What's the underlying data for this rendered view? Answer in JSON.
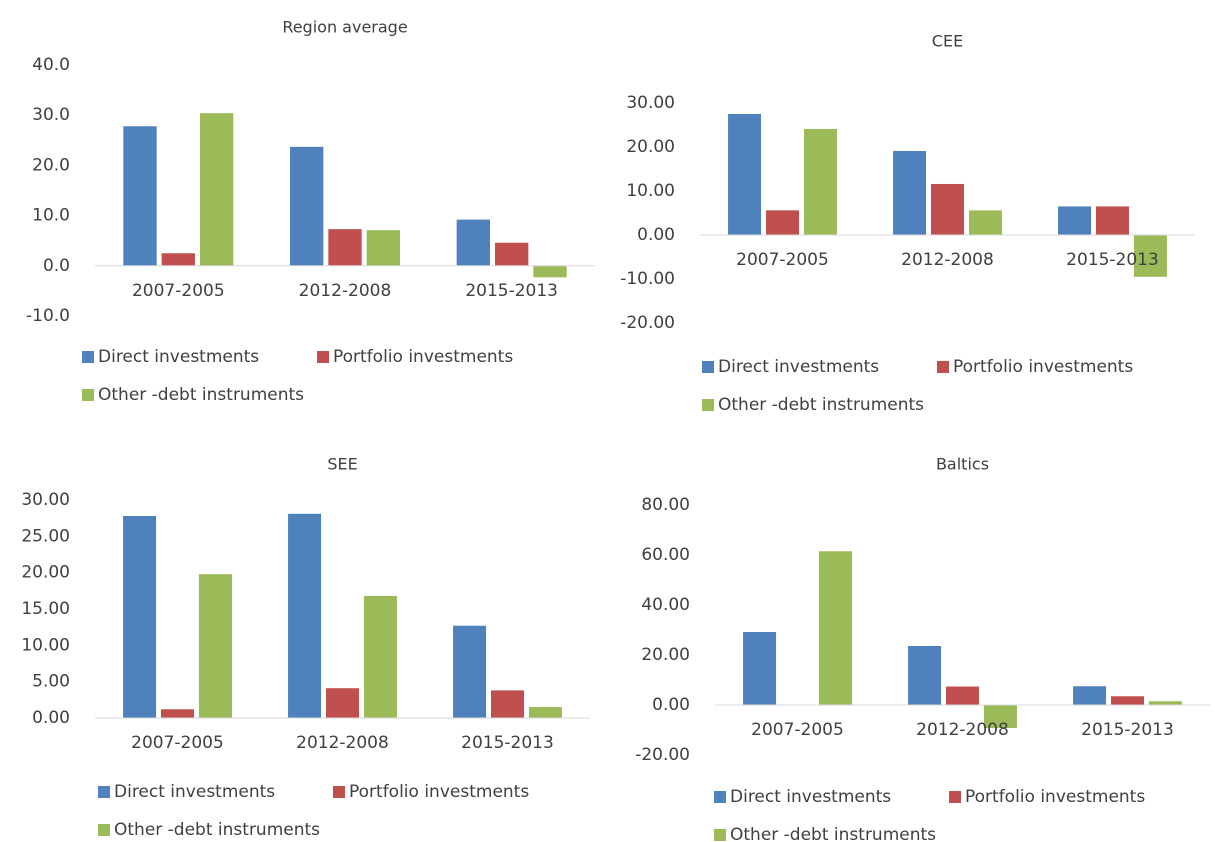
{
  "chart_data": [
    {
      "type": "bar",
      "title": "Region average",
      "categories": [
        "2007-2005",
        "2012-2008",
        "2015-2013"
      ],
      "series": [
        {
          "name": "Direct investments",
          "color": "#4f81bd",
          "values": [
            27.8,
            23.7,
            9.2
          ]
        },
        {
          "name": "Portfolio investments",
          "color": "#c0504d",
          "values": [
            2.5,
            7.3,
            4.6
          ]
        },
        {
          "name": "Other -debt instruments",
          "color": "#9bbb59",
          "values": [
            30.4,
            7.1,
            -2.3
          ]
        }
      ],
      "ylim": [
        -10,
        40
      ],
      "yticks": [
        {
          "value": -10,
          "label": "-10.0"
        },
        {
          "value": 0,
          "label": "0.0"
        },
        {
          "value": 10,
          "label": "10.0"
        },
        {
          "value": 20,
          "label": "20.0"
        },
        {
          "value": 30,
          "label": "30.0"
        },
        {
          "value": 40,
          "label": "40.0"
        }
      ]
    },
    {
      "type": "bar",
      "title": "CEE",
      "categories": [
        "2007-2005",
        "2012-2008",
        "2015-2013"
      ],
      "series": [
        {
          "name": "Direct investments",
          "color": "#4f81bd",
          "values": [
            27.5,
            19.1,
            6.5
          ]
        },
        {
          "name": "Portfolio investments",
          "color": "#c0504d",
          "values": [
            5.6,
            11.6,
            6.5
          ]
        },
        {
          "name": "Other -debt instruments",
          "color": "#9bbb59",
          "values": [
            24.1,
            5.6,
            -9.5
          ]
        }
      ],
      "ylim": [
        -20,
        30
      ],
      "yticks": [
        {
          "value": -20,
          "label": "-20.00"
        },
        {
          "value": -10,
          "label": "-10.00"
        },
        {
          "value": 0,
          "label": "0.00"
        },
        {
          "value": 10,
          "label": "10.00"
        },
        {
          "value": 20,
          "label": "20.00"
        },
        {
          "value": 30,
          "label": "30.00"
        }
      ]
    },
    {
      "type": "bar",
      "title": "SEE",
      "categories": [
        "2007-2005",
        "2012-2008",
        "2015-2013"
      ],
      "series": [
        {
          "name": "Direct investments",
          "color": "#4f81bd",
          "values": [
            27.8,
            28.1,
            12.7
          ]
        },
        {
          "name": "Portfolio investments",
          "color": "#c0504d",
          "values": [
            1.2,
            4.1,
            3.8
          ]
        },
        {
          "name": "Other -debt instruments",
          "color": "#9bbb59",
          "values": [
            19.8,
            16.8,
            1.5
          ]
        }
      ],
      "ylim": [
        0,
        30
      ],
      "yticks": [
        {
          "value": 0,
          "label": "0.00"
        },
        {
          "value": 5,
          "label": "5.00"
        },
        {
          "value": 10,
          "label": "10.00"
        },
        {
          "value": 15,
          "label": "15.00"
        },
        {
          "value": 20,
          "label": "20.00"
        },
        {
          "value": 25,
          "label": "25.00"
        },
        {
          "value": 30,
          "label": "30.00"
        }
      ]
    },
    {
      "type": "bar",
      "title": "Baltics",
      "categories": [
        "2007-2005",
        "2012-2008",
        "2015-2013"
      ],
      "series": [
        {
          "name": "Direct investments",
          "color": "#4f81bd",
          "values": [
            29.2,
            23.6,
            7.5
          ]
        },
        {
          "name": "Portfolio investments",
          "color": "#c0504d",
          "values": [
            0,
            7.4,
            3.5
          ]
        },
        {
          "name": "Other -debt instruments",
          "color": "#9bbb59",
          "values": [
            61.5,
            -9.2,
            1.5
          ]
        }
      ],
      "ylim": [
        -20,
        80
      ],
      "yticks": [
        {
          "value": -20,
          "label": "-20.00"
        },
        {
          "value": 0,
          "label": "0.00"
        },
        {
          "value": 20,
          "label": "20.00"
        },
        {
          "value": 40,
          "label": "40.00"
        },
        {
          "value": 60,
          "label": "60.00"
        },
        {
          "value": 80,
          "label": "80.00"
        }
      ]
    }
  ]
}
